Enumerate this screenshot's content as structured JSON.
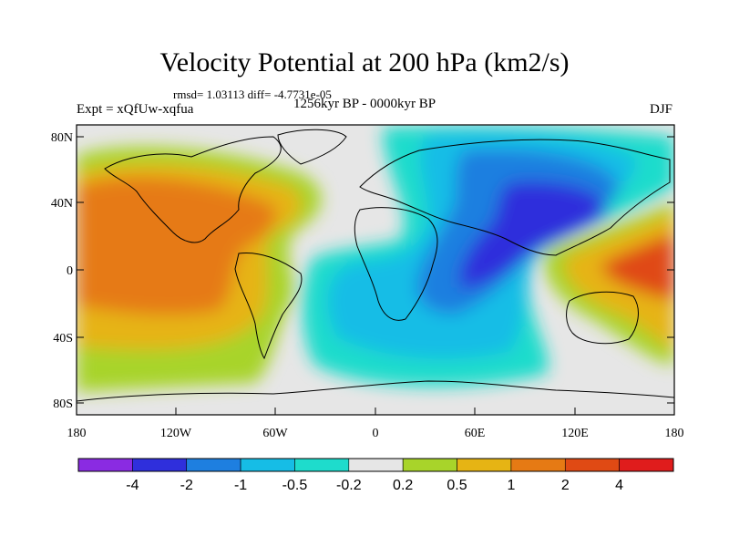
{
  "title": "Velocity Potential at 200 hPa (km2/s)",
  "rmsd_line": "rmsd= 1.03113 diff= -4.7731e-05",
  "expt_label": "Expt = xQfUw-xqfua",
  "period_label": "1256kyr BP - 0000kyr BP",
  "season_label": "DJF",
  "lat_ticks": [
    "80N",
    "40N",
    "0",
    "40S",
    "80S"
  ],
  "lon_ticks": [
    "180",
    "120W",
    "60W",
    "0",
    "60E",
    "120E",
    "180"
  ],
  "colorbar": {
    "labels": [
      "-4",
      "-2",
      "-1",
      "-0.5",
      "-0.2",
      "0.2",
      "0.5",
      "1",
      "2",
      "4"
    ],
    "colors": [
      "#8a2be2",
      "#2f2fdc",
      "#1e7fe0",
      "#16bde6",
      "#1edccc",
      "#e6e6e6",
      "#a8d42a",
      "#e6b414",
      "#e67a14",
      "#e04a14",
      "#e01c1c"
    ]
  },
  "field_colors": {
    "neutral": "#e6e6e6",
    "light_pos": "#a8d42a",
    "mid_pos": "#e6b414",
    "high_pos": "#e67a14",
    "peak_pos": "#e04a14",
    "light_neg": "#1edccc",
    "mid_neg": "#16bde6",
    "high_neg": "#1e7fe0",
    "peak_neg": "#2f2fdc"
  }
}
